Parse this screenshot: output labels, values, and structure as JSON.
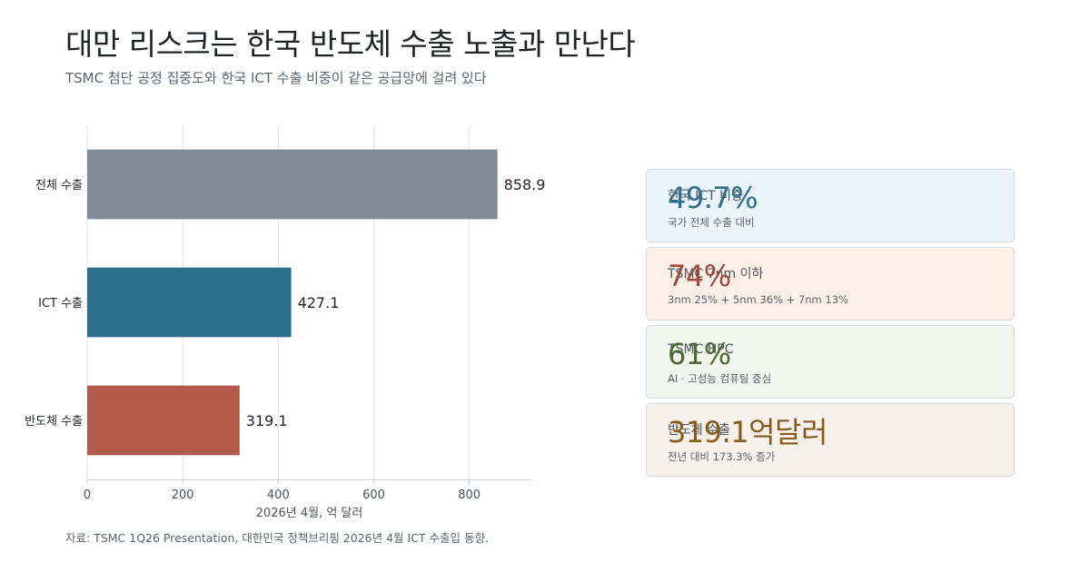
{
  "header": {
    "title": "대만 리스크는 한국 반도체 수출 노출과 만난다",
    "subtitle": "TSMC 첨단 공정 집중도와 한국 ICT 수출 비중이 같은 공급망에 걸려 있다"
  },
  "chart_data": {
    "type": "bar",
    "orientation": "horizontal",
    "categories": [
      "전체 수출",
      "ICT 수출",
      "반도체 수출"
    ],
    "values": [
      858.9,
      427.1,
      319.1
    ],
    "value_labels": [
      "858.9",
      "427.1",
      "319.1"
    ],
    "colors": [
      "#7f8c97",
      "#2e6f8e",
      "#b45a4c"
    ],
    "xlabel": "2026년 4월, 억 달러",
    "ylabel": "",
    "xlim": [
      0,
      930
    ],
    "xticks": [
      0,
      200,
      400,
      600,
      800
    ],
    "grid": "vertical",
    "legend": "none"
  },
  "source": "자료: TSMC 1Q26 Presentation, 대한민국 정책브리핑 2026년 4월 ICT 수출입 동향.",
  "kpis": [
    {
      "label": "한국 ICT 비중",
      "value": "49.7%",
      "note": "국가 전체 수출 대비",
      "bg": "#ebf3fb",
      "value_color": "#2e6f8e"
    },
    {
      "label": "TSMC 7nm 이하",
      "value": "74%",
      "note": "3nm 25% + 5nm 36% + 7nm 13%",
      "bg": "#fdf1e7",
      "value_color": "#a34a3c"
    },
    {
      "label": "TSMC HPC",
      "value": "61%",
      "note": "AI · 고성능 컴퓨팅 중심",
      "bg": "#f2f5ee",
      "value_color": "#4a6b30"
    },
    {
      "label": "반도체 수출",
      "value": "319.1억달러",
      "note": "전년 대비 173.3% 증가",
      "bg": "#f6f1ea",
      "value_color": "#8a5a1c"
    }
  ]
}
